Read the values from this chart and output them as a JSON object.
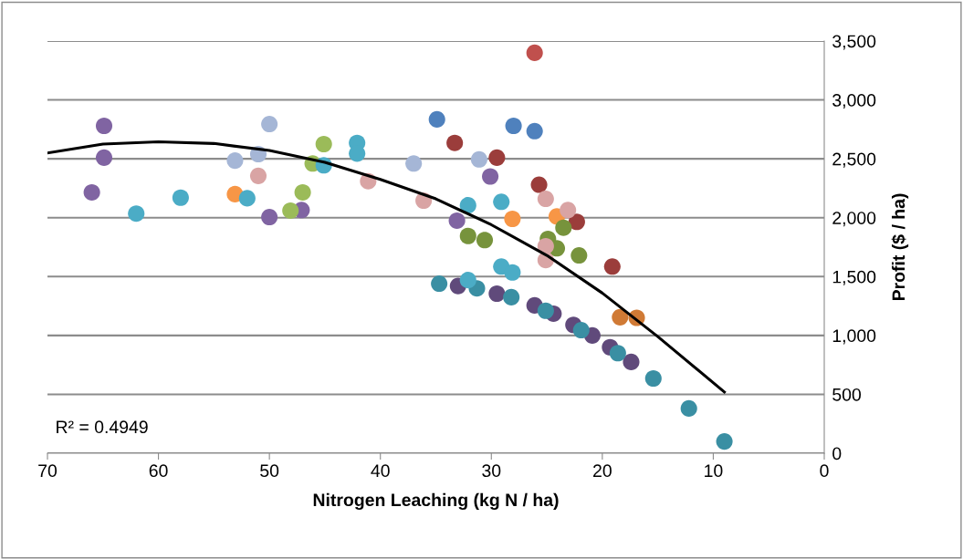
{
  "chart_data": {
    "type": "scatter",
    "xlabel": "Nitrogen Leaching (kg N / ha)",
    "ylabel": "Profit ($ / ha)",
    "xlim": [
      70,
      0
    ],
    "xticks": [
      70,
      60,
      50,
      40,
      30,
      20,
      10,
      0
    ],
    "ylim": [
      0,
      3500
    ],
    "yticks": [
      0,
      500,
      {
        "value": 1000,
        "label": "1,000"
      },
      {
        "value": 1500,
        "label": "1,500"
      },
      {
        "value": 2000,
        "label": "2,000"
      },
      {
        "value": 2500,
        "label": "2,500"
      },
      {
        "value": 3000,
        "label": "3,000"
      },
      {
        "value": 3500,
        "label": "3,500"
      }
    ],
    "grid": "y",
    "legend": false,
    "marker": "circle",
    "annotations": [
      "R² = 0.4949"
    ],
    "series": [
      {
        "color": "#8064a2",
        "x": [
          64.9,
          64.9,
          66.0,
          50.0,
          47.1,
          33.1,
          30.1
        ],
        "values": [
          2780,
          2510,
          2215,
          2005,
          2065,
          1975,
          2350
        ]
      },
      {
        "color": "#a5b6d6",
        "x": [
          50.0,
          51.0,
          53.1,
          37.0,
          31.1
        ],
        "values": [
          2795,
          2540,
          2485,
          2460,
          2495
        ]
      },
      {
        "color": "#f79646",
        "x": [
          53.1,
          28.1,
          24.1
        ],
        "values": [
          2200,
          1990,
          2010
        ]
      },
      {
        "color": "#9b3d3b",
        "x": [
          33.3,
          29.5,
          25.7,
          22.3,
          19.1
        ],
        "values": [
          2635,
          2510,
          2280,
          1965,
          1585
        ]
      },
      {
        "color": "#c0504d",
        "x": [
          26.1
        ],
        "values": [
          3400
        ]
      },
      {
        "color": "#4f81bd",
        "x": [
          34.9,
          28.0,
          26.1
        ],
        "values": [
          2835,
          2780,
          2735
        ]
      },
      {
        "color": "#9bbb59",
        "x": [
          47.0,
          48.1,
          45.1,
          46.1
        ],
        "values": [
          2215,
          2060,
          2625,
          2460
        ]
      },
      {
        "color": "#77933c",
        "x": [
          32.1,
          30.6,
          24.9,
          24.1,
          23.5,
          22.1
        ],
        "values": [
          1845,
          1810,
          1820,
          1740,
          1915,
          1680
        ]
      },
      {
        "color": "#d9a4a4",
        "x": [
          51.0,
          41.1,
          36.1,
          25.1,
          23.1,
          25.1,
          25.1
        ],
        "values": [
          2355,
          2310,
          2145,
          2160,
          2065,
          1758,
          1640
        ]
      },
      {
        "color": "#4bacc6",
        "x": [
          62.0,
          58.0,
          52.0,
          42.1,
          42.1,
          45.1,
          32.1,
          29.1
        ],
        "values": [
          2035,
          2170,
          2165,
          2635,
          2545,
          2445,
          2105,
          2135
        ]
      },
      {
        "color": "#604a7b",
        "x": [
          33.0,
          31.3,
          29.5,
          27.8,
          26.1,
          24.4,
          22.6,
          20.9,
          19.3,
          17.4
        ],
        "values": [
          1420,
          null,
          1355,
          null,
          1255,
          1185,
          1090,
          1000,
          900,
          775
        ]
      },
      {
        "color": "#3a8fa3",
        "x": [
          34.7,
          31.3,
          28.2,
          25.1,
          21.9,
          18.6,
          15.4,
          12.2,
          9.0
        ],
        "values": [
          1440,
          1400,
          1325,
          1210,
          1045,
          850,
          635,
          380,
          100
        ]
      },
      {
        "color": "#4bacc6",
        "x": [
          29.1,
          28.1,
          32.1
        ],
        "values": [
          1585,
          1535,
          1470
        ]
      },
      {
        "color": "#d07a35",
        "x": [
          18.4,
          16.9
        ],
        "values": [
          1155,
          1150
        ]
      },
      {
        "type": "line",
        "color": "#000000",
        "marker": "none",
        "x": [
          70,
          65,
          60,
          55,
          50,
          45,
          40,
          35,
          30,
          25,
          20,
          15,
          9
        ],
        "values": [
          2550,
          2625,
          2645,
          2630,
          2570,
          2470,
          2325,
          2160,
          1940,
          1680,
          1360,
          990,
          520
        ]
      }
    ]
  }
}
